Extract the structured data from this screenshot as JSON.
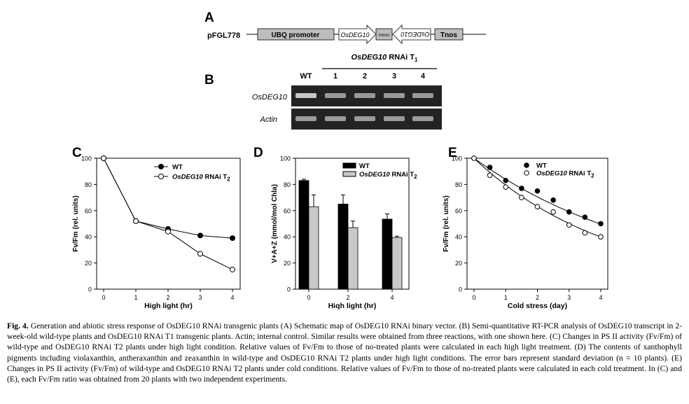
{
  "panelA": {
    "letter": "A",
    "construct": "pFGL778",
    "ubq": "UBQ promoter",
    "sense": "OsDEG10",
    "intron": "Intron",
    "antisense": "OsDEG10",
    "tnos": "Tnos"
  },
  "panelB": {
    "letter": "B",
    "header_gene": "OsDEG10",
    "header_rest": " RNAi T",
    "header_sub": "1",
    "lanes": [
      "WT",
      "1",
      "2",
      "3",
      "4"
    ],
    "rows": [
      "OsDEG10",
      "Actin"
    ]
  },
  "chart_data": [
    {
      "panel": "C",
      "type": "line",
      "xlabel": "High light (hr)",
      "ylabel": "Fv/Fm (rel. units)",
      "xlim": [
        0,
        4
      ],
      "ylim": [
        0,
        100
      ],
      "xticks": [
        "0",
        "1",
        "2",
        "3",
        "4"
      ],
      "yticks": [
        "0",
        "20",
        "40",
        "60",
        "80",
        "100"
      ],
      "legend": {
        "wt": "WT",
        "rnai_gene": "OsDEG10",
        "rnai_rest": " RNAi T",
        "rnai_sub": "2"
      },
      "series": [
        {
          "name": "WT",
          "x": [
            0,
            1,
            2,
            3,
            4
          ],
          "values": [
            100,
            52,
            46,
            41,
            39
          ]
        },
        {
          "name": "OsDEG10 RNAi T2",
          "x": [
            0,
            1,
            2,
            3,
            4
          ],
          "values": [
            100,
            52,
            44,
            27,
            15
          ]
        }
      ]
    },
    {
      "panel": "D",
      "type": "bar",
      "xlabel": "Hiqh light (hr)",
      "ylabel": "V+A+Z (mmol/mol Chla)",
      "ylim": [
        0,
        100
      ],
      "categories": [
        "0",
        "2",
        "4"
      ],
      "yticks": [
        "0",
        "20",
        "40",
        "60",
        "80",
        "100"
      ],
      "legend": {
        "wt": "WT",
        "rnai_gene": "OsDEG10",
        "rnai_rest": " RNAi T",
        "rnai_sub": "2"
      },
      "series": [
        {
          "name": "WT",
          "values": [
            83,
            65,
            53.5
          ],
          "errors": [
            1,
            7,
            4
          ]
        },
        {
          "name": "OsDEG10 RNAi T2",
          "values": [
            63,
            47,
            39.5
          ],
          "errors": [
            9,
            5,
            1
          ]
        }
      ]
    },
    {
      "panel": "E",
      "type": "scatter",
      "xlabel": "Cold stress (day)",
      "ylabel": "Fv/Fm (rel. units)",
      "xlim": [
        0,
        4
      ],
      "ylim": [
        0,
        100
      ],
      "xticks": [
        "0",
        "1",
        "2",
        "3",
        "4"
      ],
      "yticks": [
        "0",
        "20",
        "40",
        "60",
        "80",
        "100"
      ],
      "legend": {
        "wt": "WT",
        "rnai_gene": "OsDEG10",
        "rnai_rest": " RNAi T",
        "rnai_sub": "2"
      },
      "series": [
        {
          "name": "WT",
          "x": [
            0,
            0.5,
            1,
            1.5,
            2,
            2.5,
            3,
            3.5,
            4
          ],
          "values": [
            100,
            93,
            83,
            77,
            75,
            68,
            59,
            55,
            50
          ]
        },
        {
          "name": "OsDEG10 RNAi T2",
          "x": [
            0,
            0.5,
            1,
            1.5,
            2,
            2.5,
            3,
            3.5,
            4
          ],
          "values": [
            100,
            87,
            78,
            70,
            63,
            59,
            49,
            43,
            40
          ]
        }
      ],
      "fit_curves": [
        {
          "series": "WT",
          "y0": 100,
          "rate": 0.175
        },
        {
          "series": "OsDEG10 RNAi T2",
          "y0": 100,
          "rate": 0.23
        }
      ]
    }
  ],
  "caption": {
    "fig": "Fig. 4.",
    "text": "Generation and abiotic stress response of OsDEG10 RNAi transgenic plants (A) Schematic map of OsDEG10 RNAi binary vector. (B) Semi-quantitative RT-PCR analysis of OsDEG10 transcript in 2-week-old wild-type plants and OsDEG10 RNAi T1 transgenic plants. Actin; internal control. Similar results were obtained from three reactions, with one shown here. (C) Changes in PS II activity (Fv/Fm) of wild-type and OsDEG10 RNAi T2 plants under high light condition. Relative values of Fv/Fm to those of no-treated plants were calculated in each high light treatment. (D) The contents of xanthophyll pigments including violaxanthin, antheraxanthin and zeaxanthin in wild-type and OsDEG10 RNAi T2 plants under high light conditions. The error bars represent standard deviation (n = 10 plants). (E) Changes in PS II activity (Fv/Fm) of wild-type and OsDEG10 RNAi T2 plants under cold conditions. Relative values of Fv/Fm to those of no-treated plants were calculated in each cold treatment. In (C) and (E), each Fv/Fm ratio was obtained from 20 plants with two independent experiments."
  },
  "colors": {
    "gel_bg": "#232323",
    "gel_band": "#9a9a9a",
    "wt_bar": "#000000",
    "rnai_bar": "#c8c8c8"
  }
}
